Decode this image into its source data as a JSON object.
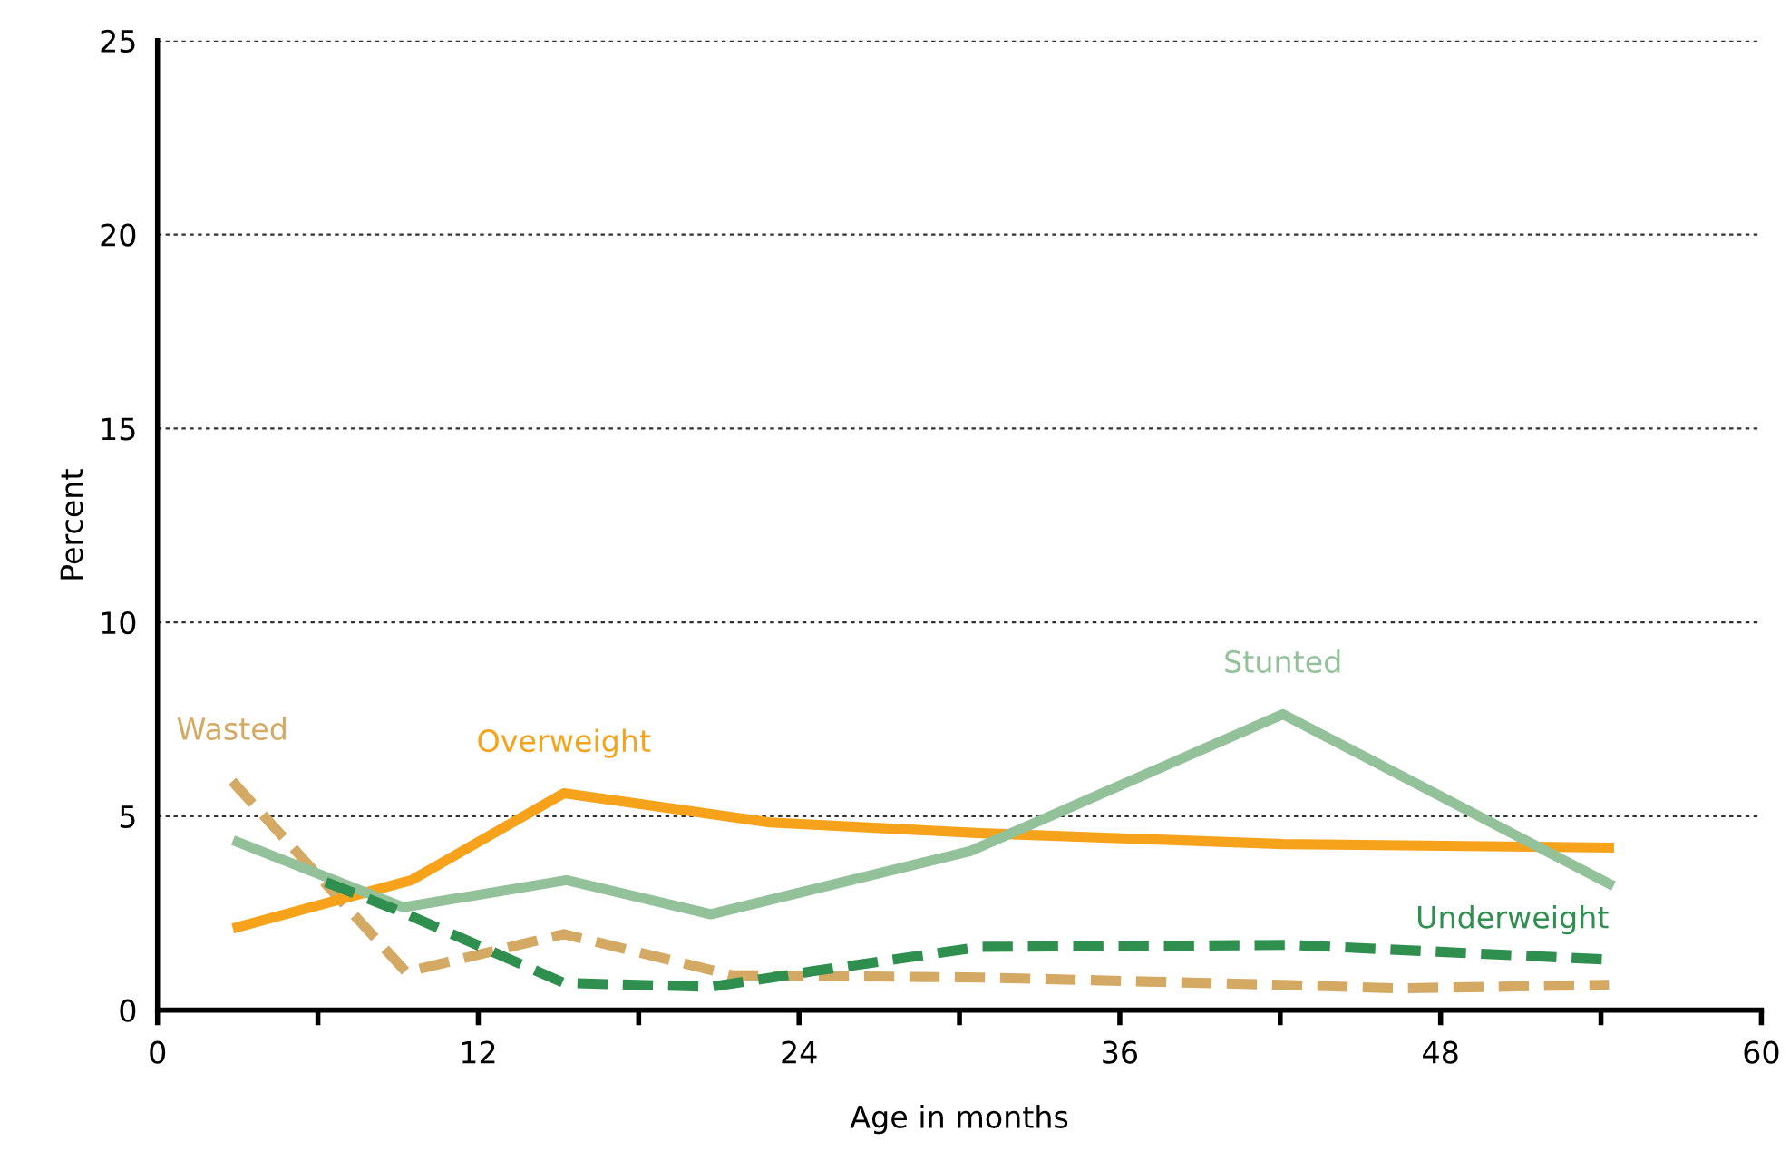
{
  "chart_data": {
    "type": "line",
    "xlabel": "Age in months",
    "ylabel": "Percent",
    "xlim": [
      0,
      60
    ],
    "ylim": [
      0,
      25
    ],
    "xticks": [
      0,
      {
        "value": 6,
        "label": null
      },
      12,
      {
        "value": 18,
        "label": null
      },
      24,
      {
        "value": 30,
        "label": null
      },
      36,
      {
        "value": 42,
        "label": null
      },
      48,
      {
        "value": 54,
        "label": null
      },
      60
    ],
    "yticks": [
      0,
      5,
      10,
      15,
      20,
      25
    ],
    "grid": "y",
    "legend": false,
    "series": [
      {
        "name": "Wasted",
        "color": "#d4a963",
        "line_style": "dashed",
        "x": [
          2.8,
          9.3,
          15.2,
          21.5,
          30.8,
          42.1,
          46.4,
          54.3
        ],
        "values": [
          5.9,
          0.98,
          1.96,
          0.9,
          0.84,
          0.65,
          0.56,
          0.65
        ]
      },
      {
        "name": "Overweight",
        "color": "#f7a21b",
        "line_style": "solid",
        "x": [
          3.0,
          9.5,
          15.2,
          22.9,
          30.8,
          42.1,
          54.3
        ],
        "values": [
          2.14,
          3.35,
          5.59,
          4.84,
          4.56,
          4.28,
          4.19
        ]
      },
      {
        "name": "Stunted",
        "color": "#93c19a",
        "line_style": "solid",
        "x": [
          3.0,
          9.2,
          15.3,
          20.7,
          30.4,
          42.1,
          54.3
        ],
        "values": [
          4.33,
          2.65,
          3.35,
          2.47,
          4.1,
          7.63,
          3.26
        ]
      },
      {
        "name": "Underweight",
        "color": "#2f8f4f",
        "line_style": "dashed",
        "x": [
          6.3,
          9.2,
          15.2,
          20.7,
          24.5,
          30.8,
          42.4,
          54.3
        ],
        "values": [
          3.3,
          2.51,
          0.7,
          0.6,
          1.0,
          1.63,
          1.68,
          1.3
        ]
      }
    ]
  }
}
